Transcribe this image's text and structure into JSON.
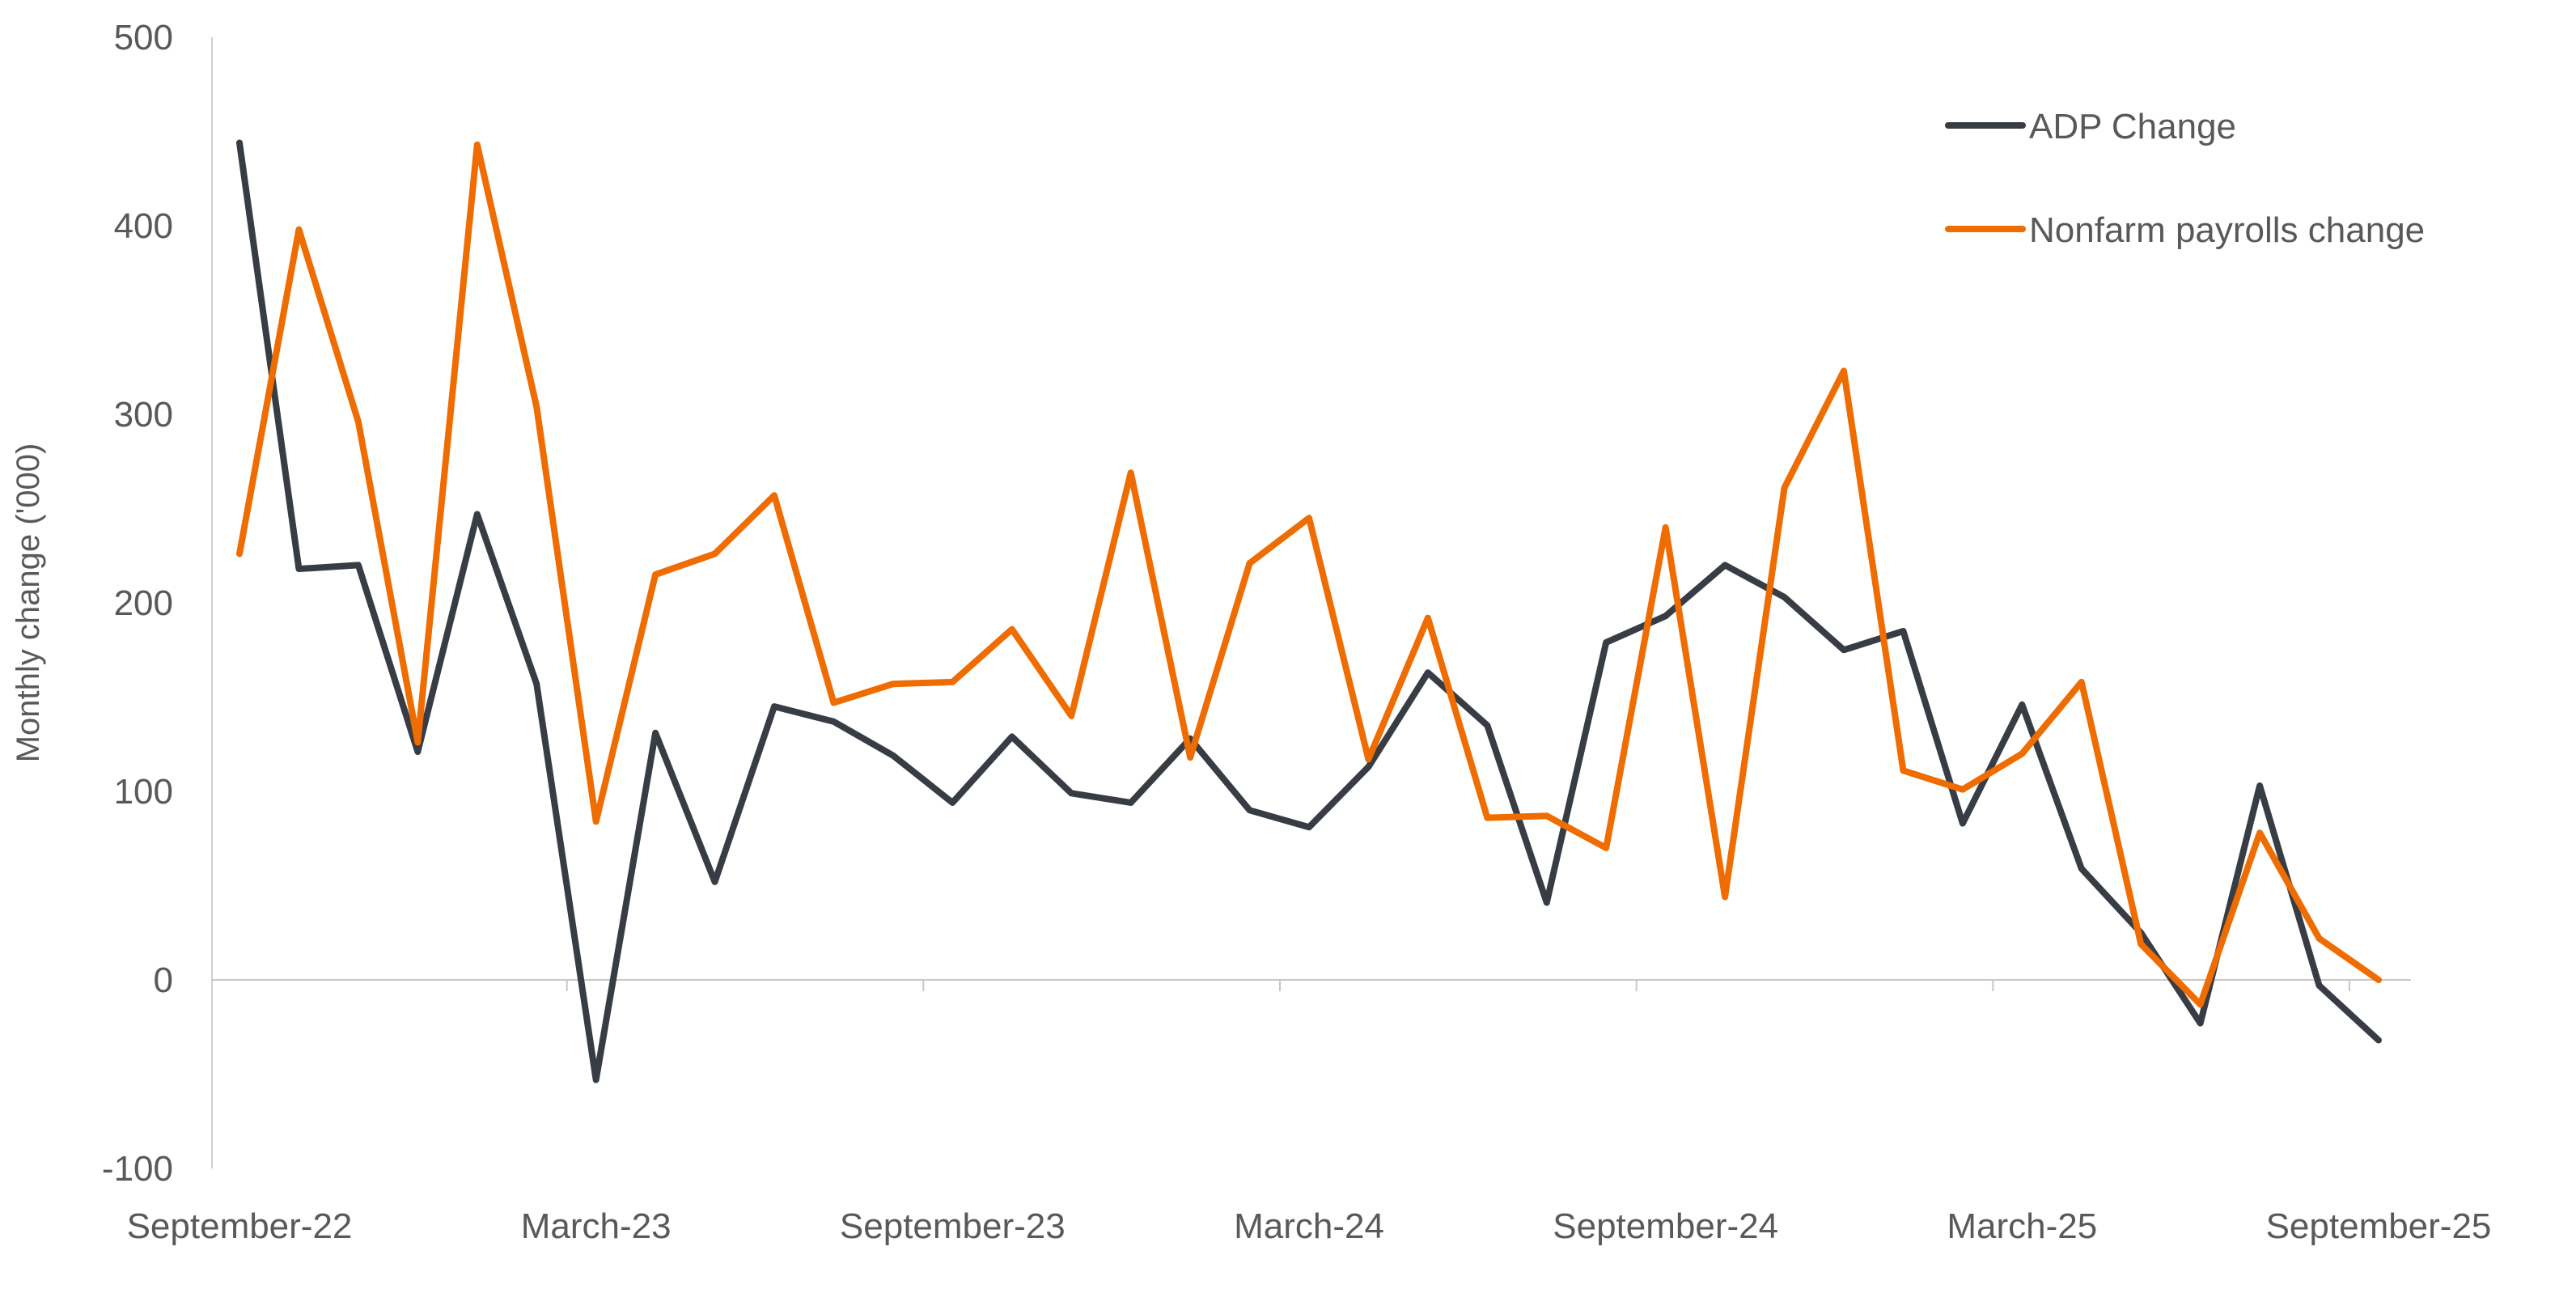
{
  "chart_data": {
    "type": "line",
    "title": "",
    "xlabel": "",
    "ylabel": "Monthly change ('000)",
    "ylim": [
      -100,
      500
    ],
    "yticks": [
      "500",
      "400",
      "300",
      "200",
      "100",
      "0",
      "-100"
    ],
    "ytick_values": [
      500,
      400,
      300,
      200,
      100,
      0,
      -100
    ],
    "x_tick_labels": [
      "September-22",
      "March-23",
      "September-23",
      "March-24",
      "September-24",
      "March-25",
      "September-25"
    ],
    "x_tick_index": [
      0,
      6,
      12,
      18,
      24,
      30,
      36
    ],
    "x_count": 37,
    "grid": false,
    "legend_position": "top-right",
    "series": [
      {
        "name": "ADP Change",
        "color": "#373C45",
        "values": [
          444,
          218,
          220,
          121,
          247,
          157,
          -53,
          131,
          52,
          145,
          137,
          119,
          94,
          129,
          99,
          94,
          128,
          90,
          81,
          113,
          163,
          135,
          41,
          179,
          193,
          220,
          203,
          175,
          185,
          83,
          146,
          59,
          25,
          -23,
          103,
          -3,
          -32
        ]
      },
      {
        "name": "Nonfarm payrolls change",
        "color": "#EF6C00",
        "values": [
          226,
          398,
          296,
          126,
          443,
          304,
          84,
          215,
          226,
          257,
          147,
          157,
          158,
          186,
          140,
          269,
          118,
          221,
          245,
          117,
          192,
          86,
          87,
          70,
          240,
          44,
          261,
          323,
          111,
          101,
          120,
          158,
          19,
          -13,
          78,
          22,
          0
        ]
      }
    ]
  }
}
